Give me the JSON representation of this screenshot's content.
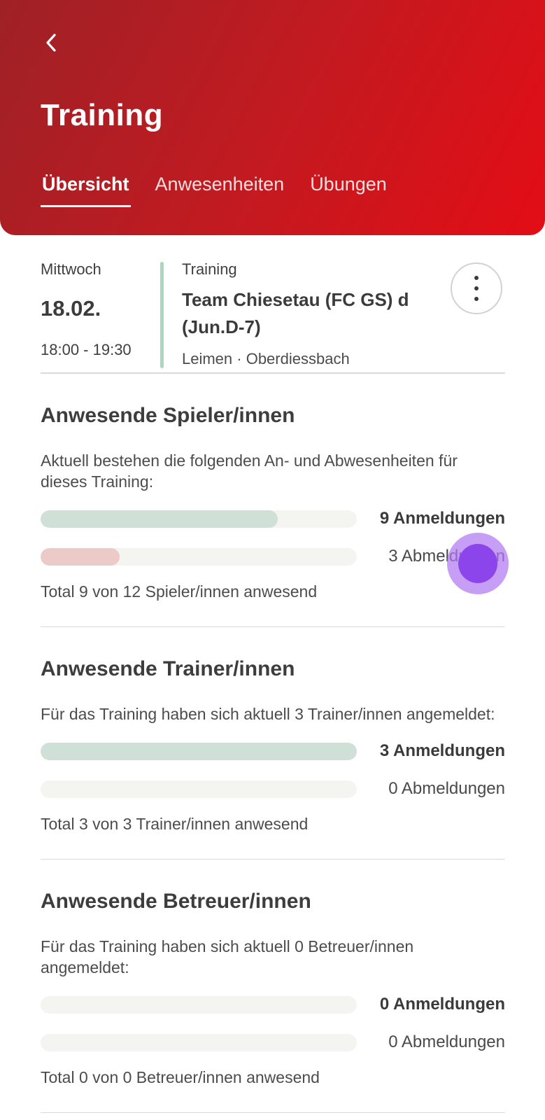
{
  "header": {
    "title": "Training",
    "back_icon": "chevron-left",
    "tabs": [
      {
        "label": "Übersicht",
        "active": true
      },
      {
        "label": "Anwesenheiten",
        "active": false
      },
      {
        "label": "Übungen",
        "active": false
      }
    ]
  },
  "event": {
    "weekday": "Mittwoch",
    "date": "18.02.",
    "time": "18:00 - 19:30",
    "type_label": "Training",
    "team": "Team Chiesetau (FC GS) d (Jun.D-7)",
    "location": "Leimen · Oberdiessbach",
    "menu_icon": "kebab-menu"
  },
  "sections": [
    {
      "title": "Anwesende Spieler/innen",
      "description": "Aktuell bestehen die folgenden An- und Abwesenheiten für dieses Training:",
      "anmeldungen": {
        "label": "9 Anmeldungen",
        "pct": 75
      },
      "abmeldungen": {
        "label": "3 Abmeldungen",
        "pct": 25
      },
      "total": "Total 9 von 12 Spieler/innen anwesend"
    },
    {
      "title": "Anwesende Trainer/innen",
      "description": "Für das Training haben sich aktuell 3 Trainer/innen angemeldet:",
      "anmeldungen": {
        "label": "3 Anmeldungen",
        "pct": 100
      },
      "abmeldungen": {
        "label": "0 Abmeldungen",
        "pct": 0
      },
      "total": "Total 3 von 3 Trainer/innen anwesend"
    },
    {
      "title": "Anwesende Betreuer/innen",
      "description": "Für das Training haben sich aktuell 0 Betreuer/innen angemeldet:",
      "anmeldungen": {
        "label": "0 Anmeldungen",
        "pct": 0
      },
      "abmeldungen": {
        "label": "0 Abmeldungen",
        "pct": 0
      },
      "total": "Total 0 von 0 Betreuer/innen anwesend"
    }
  ],
  "colors": {
    "header_gradient_start": "#9e2126",
    "header_gradient_end": "#e30d15",
    "accent_teal": "#abd6c1",
    "bar_green": "#cfe0d6",
    "bar_red": "#eccac8",
    "bar_track": "#f4f4f1",
    "touch_outer": "#b278f1",
    "touch_inner": "#8b45ea",
    "divider": "#dadada"
  }
}
